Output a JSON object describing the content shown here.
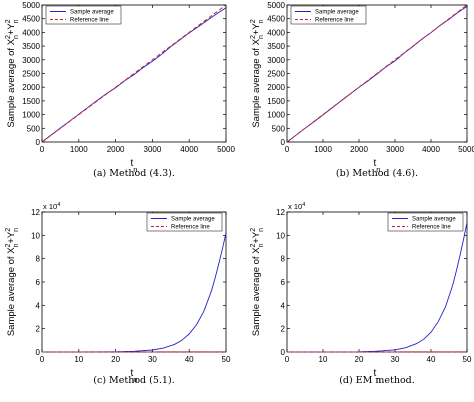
{
  "chart_data": [
    {
      "type": "line",
      "caption": "(a) Method (4.3).",
      "xlabel": "t",
      "xlabel_sub": "n",
      "ylabel": "Sample average of X",
      "ylabel_sup1": "2",
      "ylabel_sub1": "n",
      "ylabel_mid": "+Y",
      "ylabel_sup2": "2",
      "ylabel_sub2": "n",
      "xlim": [
        0,
        5000
      ],
      "ylim": [
        0,
        5000
      ],
      "xticks": [
        0,
        1000,
        2000,
        3000,
        4000,
        5000
      ],
      "yticks": [
        0,
        500,
        1000,
        1500,
        2000,
        2500,
        3000,
        3500,
        4000,
        4500,
        5000
      ],
      "y_multiplier": "",
      "legend": {
        "position": "top-left",
        "entries": [
          "Sample average",
          "Reference line"
        ]
      },
      "series": [
        {
          "name": "Sample average",
          "color": "#2222cc",
          "style": "solid",
          "x": [
            0,
            250,
            500,
            750,
            1000,
            1250,
            1500,
            1750,
            2000,
            2250,
            2500,
            2750,
            3000,
            3250,
            3500,
            3750,
            4000,
            4250,
            4500,
            4750,
            5000
          ],
          "y": [
            0,
            255,
            510,
            760,
            1015,
            1265,
            1520,
            1760,
            1980,
            2240,
            2460,
            2720,
            2950,
            3200,
            3480,
            3730,
            3980,
            4210,
            4450,
            4680,
            4900
          ]
        },
        {
          "name": "Reference line",
          "color": "#cc2222",
          "style": "dashed",
          "x": [
            0,
            5000
          ],
          "y": [
            0,
            5000
          ]
        }
      ]
    },
    {
      "type": "line",
      "caption": "(b) Method (4.6).",
      "xlabel": "t",
      "xlabel_sub": "n",
      "ylabel": "Sample average of X",
      "ylabel_sup1": "2",
      "ylabel_sub1": "n",
      "ylabel_mid": "+Y",
      "ylabel_sup2": "2",
      "ylabel_sub2": "n",
      "xlim": [
        0,
        5000
      ],
      "ylim": [
        0,
        5000
      ],
      "xticks": [
        0,
        1000,
        2000,
        3000,
        4000,
        5000
      ],
      "yticks": [
        0,
        500,
        1000,
        1500,
        2000,
        2500,
        3000,
        3500,
        4000,
        4500,
        5000
      ],
      "y_multiplier": "",
      "legend": {
        "position": "top-left",
        "entries": [
          "Sample average",
          "Reference line"
        ]
      },
      "series": [
        {
          "name": "Sample average",
          "color": "#2222cc",
          "style": "solid",
          "x": [
            0,
            250,
            500,
            750,
            1000,
            1250,
            1500,
            1750,
            2000,
            2250,
            2500,
            2750,
            3000,
            3250,
            3500,
            3750,
            4000,
            4250,
            4500,
            4750,
            5000
          ],
          "y": [
            0,
            250,
            500,
            740,
            990,
            1240,
            1500,
            1750,
            2000,
            2230,
            2480,
            2740,
            2960,
            3240,
            3490,
            3760,
            3990,
            4250,
            4480,
            4730,
            4950
          ]
        },
        {
          "name": "Reference line",
          "color": "#cc2222",
          "style": "dashed",
          "x": [
            0,
            5000
          ],
          "y": [
            0,
            5000
          ]
        }
      ]
    },
    {
      "type": "line",
      "caption": "(c) Method (5.1).",
      "xlabel": "t",
      "xlabel_sub": "n",
      "ylabel": "Sample average of X",
      "ylabel_sup1": "2",
      "ylabel_sub1": "n",
      "ylabel_mid": "+Y",
      "ylabel_sup2": "2",
      "ylabel_sub2": "n",
      "xlim": [
        0,
        50
      ],
      "ylim": [
        0,
        12
      ],
      "xticks": [
        0,
        10,
        20,
        30,
        40,
        50
      ],
      "yticks": [
        0,
        2,
        4,
        6,
        8,
        10,
        12
      ],
      "y_multiplier": "x 10",
      "y_multiplier_exp": "4",
      "legend": {
        "position": "top-right",
        "entries": [
          "Sample average",
          "Reference line"
        ]
      },
      "series": [
        {
          "name": "Sample average",
          "color": "#2222cc",
          "style": "solid",
          "x": [
            0,
            10,
            20,
            25,
            30,
            33,
            36,
            38,
            40,
            42,
            44,
            46,
            47,
            48,
            49,
            50
          ],
          "y": [
            0,
            0,
            0.02,
            0.06,
            0.17,
            0.33,
            0.65,
            1.0,
            1.55,
            2.35,
            3.5,
            5.2,
            6.3,
            7.5,
            8.8,
            10.2
          ]
        },
        {
          "name": "Reference line",
          "color": "#cc2222",
          "style": "dashed",
          "x": [
            0,
            50
          ],
          "y": [
            0,
            0.005
          ]
        }
      ]
    },
    {
      "type": "line",
      "caption": "(d) EM method.",
      "xlabel": "t",
      "xlabel_sub": "n",
      "ylabel": "Sample average of X",
      "ylabel_sup1": "2",
      "ylabel_sub1": "n",
      "ylabel_mid": "+Y",
      "ylabel_sup2": "2",
      "ylabel_sub2": "n",
      "xlim": [
        0,
        50
      ],
      "ylim": [
        0,
        12
      ],
      "xticks": [
        0,
        10,
        20,
        30,
        40,
        50
      ],
      "yticks": [
        0,
        2,
        4,
        6,
        8,
        10,
        12
      ],
      "y_multiplier": "x 10",
      "y_multiplier_exp": "4",
      "legend": {
        "position": "top-right",
        "entries": [
          "Sample average",
          "Reference line"
        ]
      },
      "series": [
        {
          "name": "Sample average",
          "color": "#2222cc",
          "style": "solid",
          "x": [
            0,
            10,
            20,
            25,
            30,
            33,
            36,
            38,
            40,
            42,
            44,
            46,
            47,
            48,
            49,
            50
          ],
          "y": [
            0,
            0,
            0.02,
            0.07,
            0.19,
            0.37,
            0.72,
            1.1,
            1.7,
            2.6,
            3.85,
            5.7,
            6.9,
            8.2,
            9.6,
            11.1
          ]
        },
        {
          "name": "Reference line",
          "color": "#cc2222",
          "style": "dashed",
          "x": [
            0,
            50
          ],
          "y": [
            0,
            0.005
          ]
        }
      ]
    }
  ]
}
